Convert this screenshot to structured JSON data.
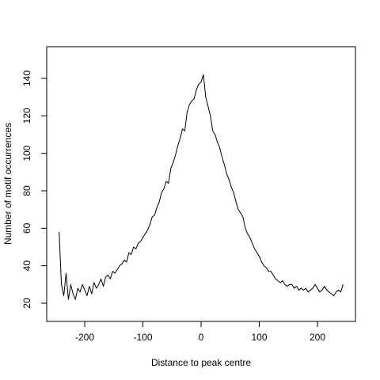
{
  "chart_data": {
    "type": "line",
    "title": "",
    "xlabel": "Distance to peak centre",
    "ylabel": "Number of motif occurrences",
    "xlim": [
      -250,
      250
    ],
    "ylim": [
      12,
      150
    ],
    "x_ticks": [
      -200,
      -100,
      0,
      100,
      200
    ],
    "y_ticks": [
      20,
      40,
      60,
      80,
      100,
      120,
      140
    ],
    "x_tick_labels": [
      "-200",
      "-100",
      "0",
      "100",
      "200"
    ],
    "y_tick_labels": [
      "20",
      "40",
      "60",
      "80",
      "100",
      "120",
      "140"
    ],
    "grid": false,
    "legend": "none",
    "line_color": "#000000",
    "series": [
      {
        "x": [
          -244,
          -240,
          -236,
          -232,
          -228,
          -224,
          -220,
          -216,
          -212,
          -208,
          -204,
          -200,
          -196,
          -192,
          -188,
          -184,
          -180,
          -176,
          -172,
          -168,
          -164,
          -160,
          -156,
          -152,
          -148,
          -144,
          -140,
          -136,
          -132,
          -128,
          -124,
          -120,
          -116,
          -112,
          -108,
          -104,
          -100,
          -96,
          -92,
          -88,
          -84,
          -80,
          -76,
          -72,
          -68,
          -64,
          -60,
          -56,
          -52,
          -48,
          -44,
          -40,
          -36,
          -32,
          -28,
          -24,
          -20,
          -16,
          -12,
          -8,
          -4,
          0,
          4,
          8,
          12,
          16,
          20,
          24,
          28,
          32,
          36,
          40,
          44,
          48,
          52,
          56,
          60,
          64,
          68,
          72,
          76,
          80,
          84,
          88,
          92,
          96,
          100,
          104,
          108,
          112,
          116,
          120,
          124,
          128,
          132,
          136,
          140,
          144,
          148,
          152,
          156,
          160,
          164,
          168,
          172,
          176,
          180,
          184,
          188,
          192,
          196,
          200,
          204,
          208,
          212,
          216,
          220,
          224,
          228,
          232,
          236,
          240,
          244
        ],
        "values": [
          58,
          30,
          24,
          36,
          22,
          30,
          25,
          22,
          28,
          26,
          30,
          27,
          24,
          29,
          25,
          31,
          28,
          30,
          33,
          29,
          34,
          35,
          33,
          37,
          36,
          38,
          40,
          41,
          43,
          42,
          47,
          46,
          50,
          49,
          52,
          53,
          55,
          57,
          59,
          62,
          66,
          67,
          71,
          74,
          79,
          81,
          85,
          84,
          92,
          95,
          99,
          104,
          108,
          113,
          112,
          122,
          126,
          128,
          129,
          134,
          137,
          138,
          142,
          130,
          125,
          120,
          112,
          110,
          106,
          103,
          98,
          94,
          89,
          86,
          82,
          79,
          74,
          70,
          68,
          66,
          60,
          57,
          55,
          52,
          49,
          47,
          45,
          42,
          40,
          39,
          37,
          37,
          35,
          33,
          32,
          31,
          32,
          30,
          29,
          30,
          30,
          28,
          29,
          27,
          28,
          27,
          28,
          26,
          27,
          28,
          30,
          28,
          26,
          27,
          29,
          27,
          26,
          25,
          24,
          26,
          27,
          26,
          30
        ]
      }
    ]
  }
}
